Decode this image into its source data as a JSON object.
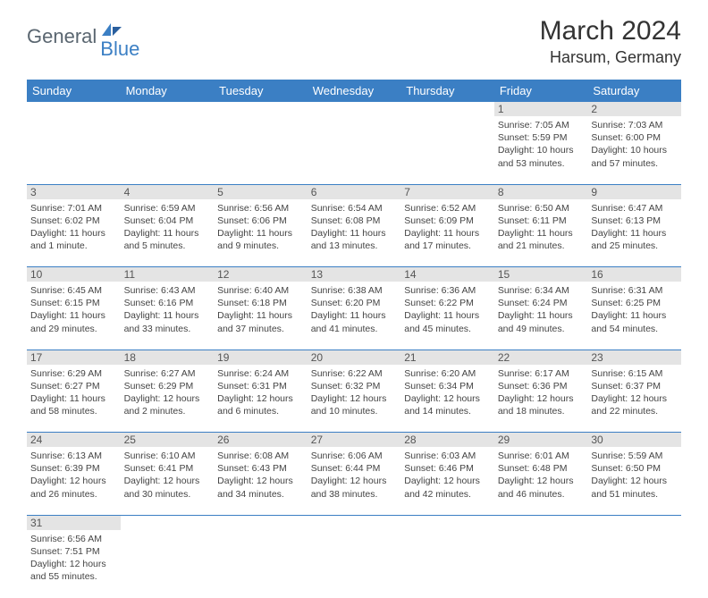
{
  "logo": {
    "part1": "General",
    "part2": "Blue"
  },
  "title": "March 2024",
  "location": "Harsum, Germany",
  "colors": {
    "header_bg": "#3b7fc4",
    "header_text": "#ffffff",
    "daynum_bg": "#e4e4e4",
    "border": "#3b7fc4",
    "logo_gray": "#5a6670",
    "logo_blue": "#3b7fc4"
  },
  "weekdays": [
    "Sunday",
    "Monday",
    "Tuesday",
    "Wednesday",
    "Thursday",
    "Friday",
    "Saturday"
  ],
  "weeks": [
    {
      "nums": [
        "",
        "",
        "",
        "",
        "",
        "1",
        "2"
      ],
      "cells": [
        null,
        null,
        null,
        null,
        null,
        {
          "sunrise": "Sunrise: 7:05 AM",
          "sunset": "Sunset: 5:59 PM",
          "daylight": "Daylight: 10 hours and 53 minutes."
        },
        {
          "sunrise": "Sunrise: 7:03 AM",
          "sunset": "Sunset: 6:00 PM",
          "daylight": "Daylight: 10 hours and 57 minutes."
        }
      ]
    },
    {
      "nums": [
        "3",
        "4",
        "5",
        "6",
        "7",
        "8",
        "9"
      ],
      "cells": [
        {
          "sunrise": "Sunrise: 7:01 AM",
          "sunset": "Sunset: 6:02 PM",
          "daylight": "Daylight: 11 hours and 1 minute."
        },
        {
          "sunrise": "Sunrise: 6:59 AM",
          "sunset": "Sunset: 6:04 PM",
          "daylight": "Daylight: 11 hours and 5 minutes."
        },
        {
          "sunrise": "Sunrise: 6:56 AM",
          "sunset": "Sunset: 6:06 PM",
          "daylight": "Daylight: 11 hours and 9 minutes."
        },
        {
          "sunrise": "Sunrise: 6:54 AM",
          "sunset": "Sunset: 6:08 PM",
          "daylight": "Daylight: 11 hours and 13 minutes."
        },
        {
          "sunrise": "Sunrise: 6:52 AM",
          "sunset": "Sunset: 6:09 PM",
          "daylight": "Daylight: 11 hours and 17 minutes."
        },
        {
          "sunrise": "Sunrise: 6:50 AM",
          "sunset": "Sunset: 6:11 PM",
          "daylight": "Daylight: 11 hours and 21 minutes."
        },
        {
          "sunrise": "Sunrise: 6:47 AM",
          "sunset": "Sunset: 6:13 PM",
          "daylight": "Daylight: 11 hours and 25 minutes."
        }
      ]
    },
    {
      "nums": [
        "10",
        "11",
        "12",
        "13",
        "14",
        "15",
        "16"
      ],
      "cells": [
        {
          "sunrise": "Sunrise: 6:45 AM",
          "sunset": "Sunset: 6:15 PM",
          "daylight": "Daylight: 11 hours and 29 minutes."
        },
        {
          "sunrise": "Sunrise: 6:43 AM",
          "sunset": "Sunset: 6:16 PM",
          "daylight": "Daylight: 11 hours and 33 minutes."
        },
        {
          "sunrise": "Sunrise: 6:40 AM",
          "sunset": "Sunset: 6:18 PM",
          "daylight": "Daylight: 11 hours and 37 minutes."
        },
        {
          "sunrise": "Sunrise: 6:38 AM",
          "sunset": "Sunset: 6:20 PM",
          "daylight": "Daylight: 11 hours and 41 minutes."
        },
        {
          "sunrise": "Sunrise: 6:36 AM",
          "sunset": "Sunset: 6:22 PM",
          "daylight": "Daylight: 11 hours and 45 minutes."
        },
        {
          "sunrise": "Sunrise: 6:34 AM",
          "sunset": "Sunset: 6:24 PM",
          "daylight": "Daylight: 11 hours and 49 minutes."
        },
        {
          "sunrise": "Sunrise: 6:31 AM",
          "sunset": "Sunset: 6:25 PM",
          "daylight": "Daylight: 11 hours and 54 minutes."
        }
      ]
    },
    {
      "nums": [
        "17",
        "18",
        "19",
        "20",
        "21",
        "22",
        "23"
      ],
      "cells": [
        {
          "sunrise": "Sunrise: 6:29 AM",
          "sunset": "Sunset: 6:27 PM",
          "daylight": "Daylight: 11 hours and 58 minutes."
        },
        {
          "sunrise": "Sunrise: 6:27 AM",
          "sunset": "Sunset: 6:29 PM",
          "daylight": "Daylight: 12 hours and 2 minutes."
        },
        {
          "sunrise": "Sunrise: 6:24 AM",
          "sunset": "Sunset: 6:31 PM",
          "daylight": "Daylight: 12 hours and 6 minutes."
        },
        {
          "sunrise": "Sunrise: 6:22 AM",
          "sunset": "Sunset: 6:32 PM",
          "daylight": "Daylight: 12 hours and 10 minutes."
        },
        {
          "sunrise": "Sunrise: 6:20 AM",
          "sunset": "Sunset: 6:34 PM",
          "daylight": "Daylight: 12 hours and 14 minutes."
        },
        {
          "sunrise": "Sunrise: 6:17 AM",
          "sunset": "Sunset: 6:36 PM",
          "daylight": "Daylight: 12 hours and 18 minutes."
        },
        {
          "sunrise": "Sunrise: 6:15 AM",
          "sunset": "Sunset: 6:37 PM",
          "daylight": "Daylight: 12 hours and 22 minutes."
        }
      ]
    },
    {
      "nums": [
        "24",
        "25",
        "26",
        "27",
        "28",
        "29",
        "30"
      ],
      "cells": [
        {
          "sunrise": "Sunrise: 6:13 AM",
          "sunset": "Sunset: 6:39 PM",
          "daylight": "Daylight: 12 hours and 26 minutes."
        },
        {
          "sunrise": "Sunrise: 6:10 AM",
          "sunset": "Sunset: 6:41 PM",
          "daylight": "Daylight: 12 hours and 30 minutes."
        },
        {
          "sunrise": "Sunrise: 6:08 AM",
          "sunset": "Sunset: 6:43 PM",
          "daylight": "Daylight: 12 hours and 34 minutes."
        },
        {
          "sunrise": "Sunrise: 6:06 AM",
          "sunset": "Sunset: 6:44 PM",
          "daylight": "Daylight: 12 hours and 38 minutes."
        },
        {
          "sunrise": "Sunrise: 6:03 AM",
          "sunset": "Sunset: 6:46 PM",
          "daylight": "Daylight: 12 hours and 42 minutes."
        },
        {
          "sunrise": "Sunrise: 6:01 AM",
          "sunset": "Sunset: 6:48 PM",
          "daylight": "Daylight: 12 hours and 46 minutes."
        },
        {
          "sunrise": "Sunrise: 5:59 AM",
          "sunset": "Sunset: 6:50 PM",
          "daylight": "Daylight: 12 hours and 51 minutes."
        }
      ]
    },
    {
      "nums": [
        "31",
        "",
        "",
        "",
        "",
        "",
        ""
      ],
      "cells": [
        {
          "sunrise": "Sunrise: 6:56 AM",
          "sunset": "Sunset: 7:51 PM",
          "daylight": "Daylight: 12 hours and 55 minutes."
        },
        null,
        null,
        null,
        null,
        null,
        null
      ]
    }
  ]
}
